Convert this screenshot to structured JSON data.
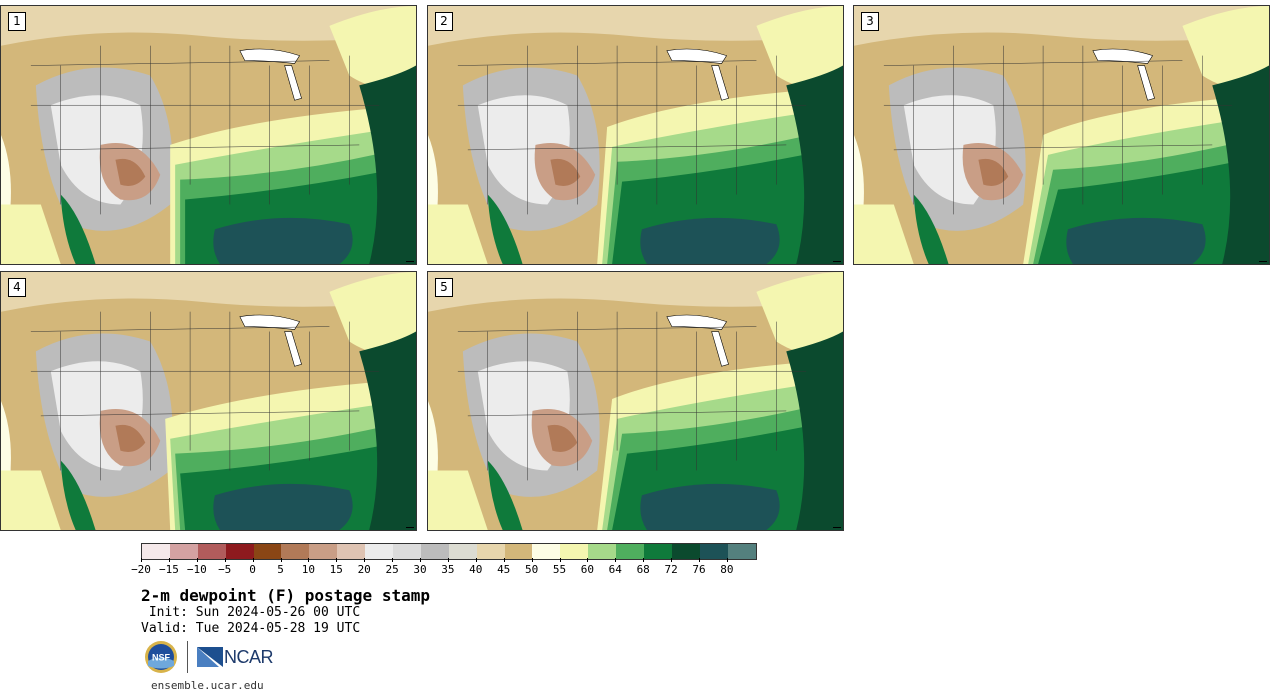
{
  "panels": [
    {
      "label": "1"
    },
    {
      "label": "2"
    },
    {
      "label": "3"
    },
    {
      "label": "4"
    },
    {
      "label": "5"
    }
  ],
  "colorbar": {
    "colors": [
      "#f5e9ea",
      "#d4a2a2",
      "#b15c5c",
      "#8e1a1e",
      "#8a4615",
      "#b17a58",
      "#c99e86",
      "#dfc4b3",
      "#ececec",
      "#dcdcdc",
      "#bcbcbc",
      "#dcdcd2",
      "#e7d6ad",
      "#d3b77a",
      "#fdfde5",
      "#f4f6b0",
      "#a6da8a",
      "#4fae5e",
      "#0f7a3b",
      "#0b4a2e",
      "#1d5257",
      "#54807e"
    ],
    "tick_labels": [
      "−20",
      "−15",
      "−10",
      "−5",
      "0",
      "5",
      "10",
      "15",
      "20",
      "25",
      "30",
      "35",
      "40",
      "45",
      "50",
      "55",
      "60",
      "64",
      "68",
      "72",
      "76",
      "80"
    ]
  },
  "title": "2-m dewpoint (F) postage stamp",
  "init_text": " Init: Sun 2024-05-26 00 UTC",
  "valid_text": "Valid: Tue 2024-05-28 19 UTC",
  "logos": {
    "nsf": "NSF",
    "ncar": "NCAR"
  },
  "website": "ensemble.ucar.edu"
}
